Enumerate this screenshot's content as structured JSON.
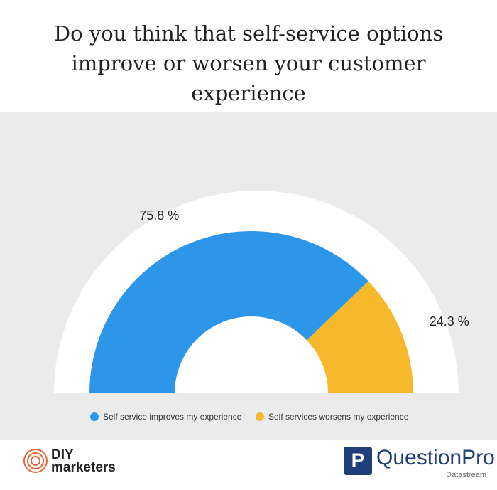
{
  "chart_data": {
    "type": "pie",
    "half": true,
    "title": "Do you think that self-service options improve or worsen your customer experience",
    "categories": [
      "Self service improves my experience",
      "Self services worsens my experience"
    ],
    "values": [
      75.8,
      24.3
    ],
    "value_labels": [
      "75.8 %",
      "24.3 %"
    ],
    "colors": [
      "#2e96e8",
      "#f6b92b"
    ]
  },
  "footer": {
    "left_top": "DIY",
    "left_bottom": "marketers",
    "right": "QuestionPro",
    "right_sub": "Datastream"
  }
}
